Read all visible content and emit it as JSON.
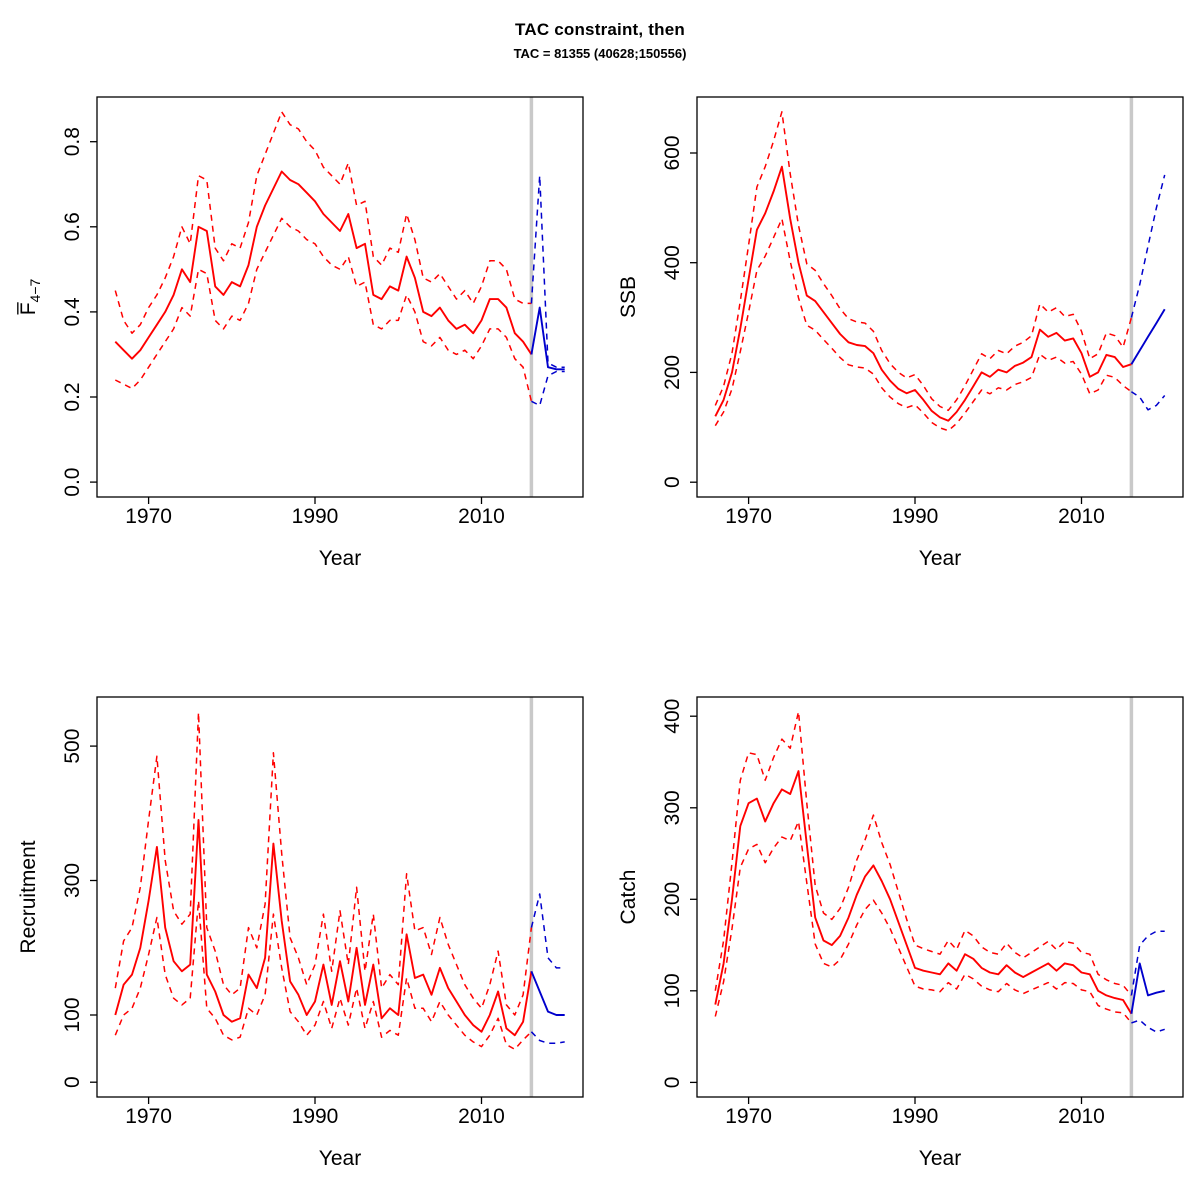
{
  "header": {
    "title": "TAC constraint, then",
    "subtitle": "TAC = 81355 (40628;150556)"
  },
  "colors": {
    "history": "#ff0000",
    "forecast": "#0000cc",
    "divider": "#c9c9c9",
    "axis": "#000000"
  },
  "chart_data": [
    {
      "type": "line",
      "name": "fbar",
      "xlabel": "Year",
      "ylabel": "F4-7",
      "ylabel_parts": {
        "base": "F̅",
        "sub": "4−7"
      },
      "xlim": [
        1963.8,
        2022.2
      ],
      "ylim": [
        -0.035,
        0.905
      ],
      "xticks": [
        1970,
        1990,
        2010
      ],
      "yticks": [
        0,
        0.2,
        0.4,
        0.6,
        0.8
      ],
      "ytick_labels": [
        "0.0",
        "0.2",
        "0.4",
        "0.6",
        "0.8"
      ],
      "divider_x": 2016,
      "series": [
        {
          "name": "fbar-upper-ci-history",
          "color": "history",
          "dash": true,
          "x_start": 1966,
          "values": [
            0.45,
            0.38,
            0.35,
            0.37,
            0.41,
            0.44,
            0.48,
            0.53,
            0.6,
            0.56,
            0.72,
            0.71,
            0.55,
            0.52,
            0.56,
            0.55,
            0.61,
            0.72,
            0.77,
            0.82,
            0.87,
            0.84,
            0.83,
            0.8,
            0.78,
            0.74,
            0.72,
            0.7,
            0.75,
            0.65,
            0.66,
            0.53,
            0.51,
            0.55,
            0.54,
            0.63,
            0.57,
            0.48,
            0.47,
            0.49,
            0.46,
            0.43,
            0.45,
            0.42,
            0.46,
            0.52,
            0.52,
            0.5,
            0.43,
            0.42,
            0.42
          ]
        },
        {
          "name": "fbar-lower-ci-history",
          "color": "history",
          "dash": true,
          "x_start": 1966,
          "values": [
            0.24,
            0.23,
            0.22,
            0.24,
            0.27,
            0.3,
            0.33,
            0.36,
            0.41,
            0.39,
            0.5,
            0.49,
            0.38,
            0.36,
            0.39,
            0.38,
            0.42,
            0.5,
            0.54,
            0.58,
            0.62,
            0.6,
            0.59,
            0.57,
            0.56,
            0.53,
            0.51,
            0.5,
            0.53,
            0.46,
            0.47,
            0.37,
            0.36,
            0.38,
            0.38,
            0.44,
            0.4,
            0.33,
            0.32,
            0.34,
            0.31,
            0.3,
            0.31,
            0.29,
            0.32,
            0.36,
            0.36,
            0.34,
            0.29,
            0.27,
            0.19
          ]
        },
        {
          "name": "fbar-median-history",
          "color": "history",
          "dash": false,
          "x_start": 1966,
          "values": [
            0.33,
            0.31,
            0.29,
            0.31,
            0.34,
            0.37,
            0.4,
            0.44,
            0.5,
            0.47,
            0.6,
            0.59,
            0.46,
            0.44,
            0.47,
            0.46,
            0.51,
            0.6,
            0.65,
            0.69,
            0.73,
            0.71,
            0.7,
            0.68,
            0.66,
            0.63,
            0.61,
            0.59,
            0.63,
            0.55,
            0.56,
            0.44,
            0.43,
            0.46,
            0.45,
            0.53,
            0.48,
            0.4,
            0.39,
            0.41,
            0.38,
            0.36,
            0.37,
            0.35,
            0.38,
            0.43,
            0.43,
            0.41,
            0.35,
            0.33,
            0.3
          ]
        },
        {
          "name": "fbar-upper-ci-forecast",
          "color": "forecast",
          "dash": true,
          "x_start": 2016,
          "values": [
            0.42,
            0.72,
            0.28,
            0.27,
            0.27
          ]
        },
        {
          "name": "fbar-lower-ci-forecast",
          "color": "forecast",
          "dash": true,
          "x_start": 2016,
          "values": [
            0.19,
            0.18,
            0.25,
            0.26,
            0.26
          ]
        },
        {
          "name": "fbar-median-forecast",
          "color": "forecast",
          "dash": false,
          "x_start": 2016,
          "values": [
            0.3,
            0.41,
            0.27,
            0.265,
            0.265
          ]
        }
      ]
    },
    {
      "type": "line",
      "name": "ssb",
      "xlabel": "Year",
      "ylabel": "SSB",
      "xlim": [
        1963.8,
        2022.2
      ],
      "ylim": [
        -27,
        702
      ],
      "xticks": [
        1970,
        1990,
        2010
      ],
      "yticks": [
        0,
        200,
        400,
        600
      ],
      "ytick_labels": [
        "0",
        "200",
        "400",
        "600"
      ],
      "divider_x": 2016,
      "series": [
        {
          "name": "ssb-upper-ci-history",
          "color": "history",
          "dash": true,
          "x_start": 1966,
          "values": [
            140,
            175,
            235,
            330,
            432,
            538,
            575,
            622,
            675,
            562,
            468,
            398,
            386,
            362,
            340,
            316,
            298,
            292,
            290,
            275,
            240,
            216,
            200,
            190,
            196,
            176,
            152,
            138,
            131,
            150,
            176,
            205,
            234,
            225,
            240,
            234,
            248,
            255,
            267,
            325,
            310,
            318,
            302,
            306,
            275,
            225,
            234,
            272,
            267,
            246,
            300
          ]
        },
        {
          "name": "ssb-lower-ci-history",
          "color": "history",
          "dash": true,
          "x_start": 1966,
          "values": [
            103,
            128,
            170,
            238,
            310,
            386,
            412,
            446,
            480,
            403,
            336,
            286,
            277,
            260,
            244,
            227,
            214,
            210,
            208,
            197,
            172,
            155,
            143,
            136,
            141,
            126,
            109,
            99,
            94,
            107,
            126,
            147,
            168,
            161,
            172,
            168,
            178,
            183,
            191,
            233,
            222,
            228,
            217,
            220,
            197,
            161,
            168,
            195,
            191,
            176,
            165
          ]
        },
        {
          "name": "ssb-median-history",
          "color": "history",
          "dash": false,
          "x_start": 1966,
          "values": [
            120,
            150,
            200,
            280,
            370,
            460,
            490,
            530,
            575,
            480,
            400,
            340,
            330,
            310,
            290,
            270,
            255,
            250,
            248,
            235,
            205,
            185,
            170,
            162,
            168,
            150,
            130,
            118,
            112,
            128,
            150,
            175,
            200,
            192,
            205,
            200,
            212,
            218,
            228,
            278,
            265,
            272,
            258,
            262,
            235,
            192,
            200,
            232,
            228,
            210,
            215
          ]
        },
        {
          "name": "ssb-upper-ci-forecast",
          "color": "forecast",
          "dash": true,
          "x_start": 2016,
          "values": [
            300,
            360,
            430,
            500,
            560
          ]
        },
        {
          "name": "ssb-lower-ci-forecast",
          "color": "forecast",
          "dash": true,
          "x_start": 2016,
          "values": [
            165,
            155,
            132,
            140,
            158
          ]
        },
        {
          "name": "ssb-median-forecast",
          "color": "forecast",
          "dash": false,
          "x_start": 2016,
          "values": [
            215,
            240,
            265,
            290,
            315
          ]
        }
      ]
    },
    {
      "type": "line",
      "name": "recruitment",
      "xlabel": "Year",
      "ylabel": "Recruitment",
      "xlim": [
        1963.8,
        2022.2
      ],
      "ylim": [
        -22,
        573
      ],
      "xticks": [
        1970,
        1990,
        2010
      ],
      "yticks": [
        0,
        100,
        300,
        500
      ],
      "ytick_labels": [
        "0",
        "100",
        "300",
        "500"
      ],
      "divider_x": 2016,
      "series": [
        {
          "name": "recruitment-upper-ci-history",
          "color": "history",
          "dash": true,
          "x_start": 1966,
          "values": [
            140,
            210,
            230,
            290,
            390,
            485,
            330,
            255,
            235,
            250,
            550,
            230,
            195,
            145,
            130,
            140,
            230,
            200,
            265,
            490,
            340,
            215,
            185,
            145,
            175,
            250,
            165,
            255,
            175,
            290,
            165,
            250,
            140,
            160,
            145,
            310,
            225,
            230,
            190,
            245,
            205,
            175,
            145,
            125,
            110,
            145,
            195,
            115,
            100,
            130,
            230
          ]
        },
        {
          "name": "recruitment-lower-ci-history",
          "color": "history",
          "dash": true,
          "x_start": 1966,
          "values": [
            70,
            100,
            110,
            140,
            190,
            245,
            160,
            125,
            115,
            125,
            270,
            110,
            95,
            70,
            63,
            67,
            110,
            100,
            130,
            250,
            170,
            105,
            90,
            70,
            85,
            120,
            80,
            125,
            85,
            140,
            80,
            120,
            67,
            77,
            70,
            155,
            110,
            110,
            90,
            120,
            100,
            85,
            70,
            60,
            53,
            70,
            95,
            56,
            49,
            63,
            75
          ]
        },
        {
          "name": "recruitment-median-history",
          "color": "history",
          "dash": false,
          "x_start": 1966,
          "values": [
            100,
            145,
            160,
            200,
            270,
            350,
            230,
            180,
            165,
            175,
            390,
            160,
            135,
            100,
            90,
            95,
            160,
            140,
            185,
            355,
            240,
            150,
            130,
            100,
            120,
            175,
            115,
            180,
            120,
            200,
            115,
            175,
            95,
            110,
            100,
            220,
            155,
            160,
            130,
            170,
            140,
            120,
            100,
            85,
            75,
            100,
            135,
            80,
            70,
            90,
            165
          ]
        },
        {
          "name": "recruitment-upper-ci-forecast",
          "color": "forecast",
          "dash": true,
          "x_start": 2016,
          "values": [
            230,
            280,
            185,
            170,
            170
          ]
        },
        {
          "name": "recruitment-lower-ci-forecast",
          "color": "forecast",
          "dash": true,
          "x_start": 2016,
          "values": [
            75,
            62,
            58,
            58,
            60
          ]
        },
        {
          "name": "recruitment-median-forecast",
          "color": "forecast",
          "dash": false,
          "x_start": 2016,
          "values": [
            165,
            135,
            105,
            100,
            100
          ]
        }
      ]
    },
    {
      "type": "line",
      "name": "catch",
      "xlabel": "Year",
      "ylabel": "Catch",
      "xlim": [
        1963.8,
        2022.2
      ],
      "ylim": [
        -16,
        421
      ],
      "xticks": [
        1970,
        1990,
        2010
      ],
      "yticks": [
        0,
        100,
        200,
        300,
        400
      ],
      "ytick_labels": [
        "0",
        "100",
        "200",
        "300",
        "400"
      ],
      "divider_x": 2016,
      "series": [
        {
          "name": "catch-upper-ci-history",
          "color": "history",
          "dash": true,
          "x_start": 1966,
          "values": [
            100,
            155,
            240,
            330,
            360,
            358,
            330,
            355,
            375,
            365,
            405,
            305,
            215,
            185,
            178,
            190,
            213,
            243,
            265,
            292,
            262,
            238,
            208,
            178,
            150,
            146,
            143,
            140,
            155,
            145,
            166,
            160,
            148,
            142,
            140,
            152,
            142,
            136,
            142,
            148,
            154,
            145,
            154,
            152,
            142,
            140,
            118,
            112,
            108,
            106,
            95
          ]
        },
        {
          "name": "catch-lower-ci-history",
          "color": "history",
          "dash": true,
          "x_start": 1966,
          "values": [
            72,
            110,
            168,
            235,
            255,
            260,
            240,
            256,
            268,
            264,
            285,
            218,
            151,
            130,
            126,
            134,
            151,
            172,
            189,
            199,
            185,
            168,
            147,
            126,
            105,
            102,
            101,
            99,
            109,
            102,
            118,
            113,
            105,
            101,
            99,
            108,
            101,
            97,
            101,
            105,
            109,
            102,
            109,
            108,
            101,
            99,
            84,
            80,
            77,
            76,
            65
          ]
        },
        {
          "name": "catch-median-history",
          "color": "history",
          "dash": false,
          "x_start": 1966,
          "values": [
            85,
            130,
            200,
            280,
            305,
            310,
            285,
            305,
            320,
            315,
            340,
            260,
            180,
            155,
            150,
            160,
            180,
            205,
            225,
            237,
            220,
            200,
            175,
            150,
            125,
            122,
            120,
            118,
            130,
            122,
            140,
            135,
            125,
            120,
            118,
            128,
            120,
            115,
            120,
            125,
            130,
            122,
            130,
            128,
            120,
            118,
            100,
            95,
            92,
            90,
            75
          ]
        },
        {
          "name": "catch-upper-ci-forecast",
          "color": "forecast",
          "dash": true,
          "x_start": 2016,
          "values": [
            95,
            150,
            160,
            165,
            165
          ]
        },
        {
          "name": "catch-lower-ci-forecast",
          "color": "forecast",
          "dash": true,
          "x_start": 2016,
          "values": [
            65,
            68,
            60,
            55,
            58
          ]
        },
        {
          "name": "catch-median-forecast",
          "color": "forecast",
          "dash": false,
          "x_start": 2016,
          "values": [
            75,
            130,
            95,
            98,
            100
          ]
        }
      ]
    }
  ]
}
